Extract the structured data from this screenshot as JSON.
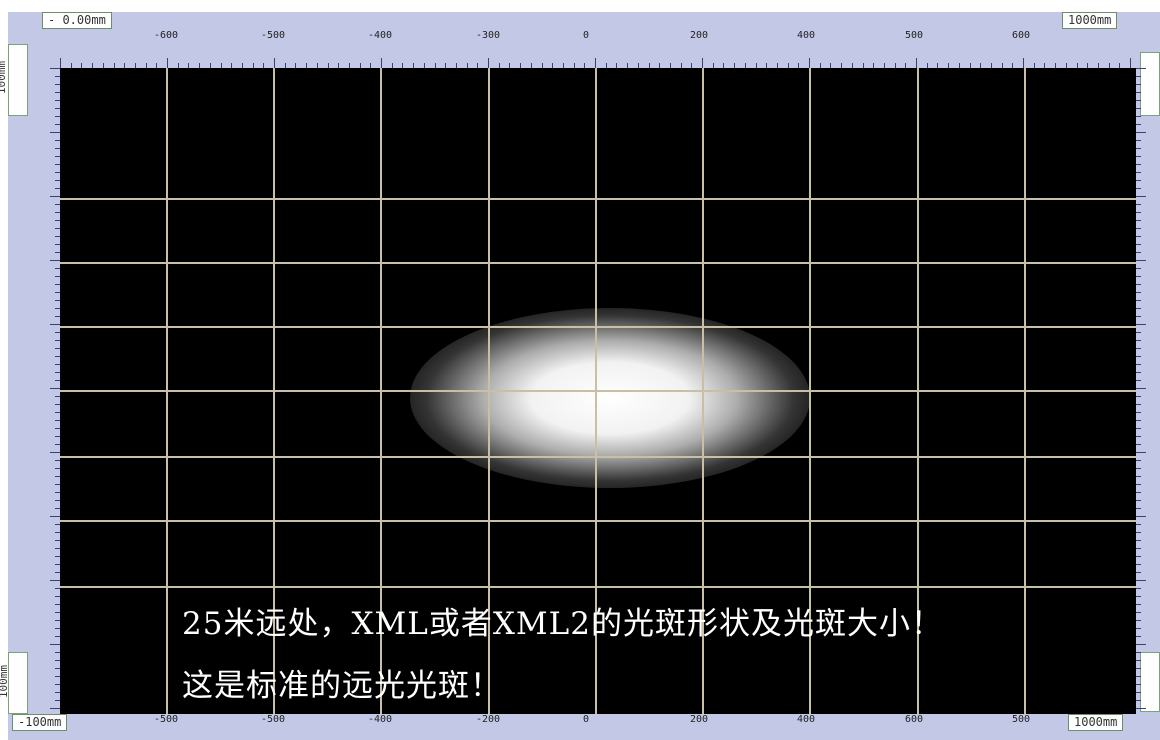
{
  "corners": {
    "top_left": "- 0.00mm",
    "top_right": "1000mm",
    "bottom_left": "-100mm",
    "bottom_right": "1000mm",
    "left_top": "100mm",
    "left_bottom": "100mm"
  },
  "top_ticks": [
    "-600",
    "-500",
    "-400",
    "-300",
    "0",
    "200",
    "400",
    "500",
    "600"
  ],
  "bottom_ticks": [
    "-500",
    "-500",
    "-400",
    "-200",
    "0",
    "200",
    "400",
    "600",
    "500"
  ],
  "caption": {
    "line1": "25米远处，XML或者XML2的光斑形状及光斑大小！",
    "line2": "这是标准的远光光斑！"
  },
  "colors": {
    "frame": "#c3c8e6",
    "plot_bg": "#000000",
    "grid": "#c8c0a4"
  }
}
